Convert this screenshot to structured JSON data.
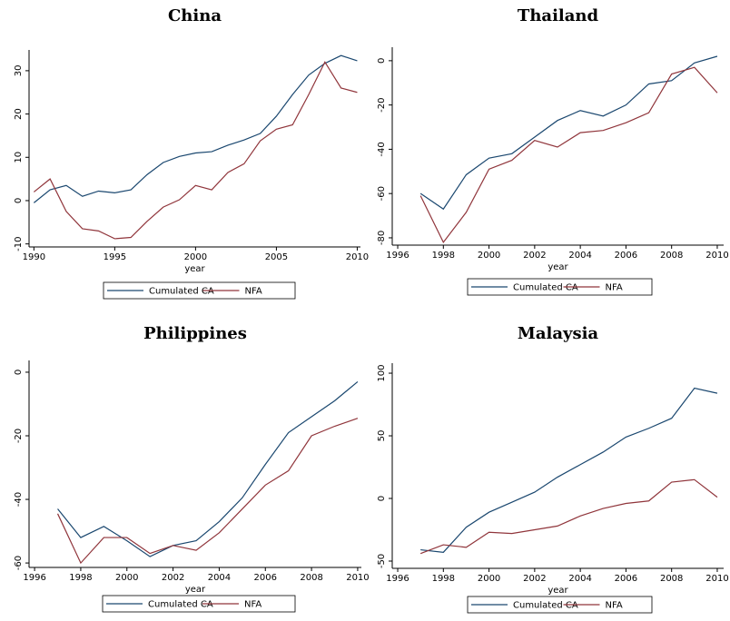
{
  "chart_data": [
    {
      "type": "line",
      "title": "China",
      "xlabel": "year",
      "x": [
        1990,
        1991,
        1992,
        1993,
        1994,
        1995,
        1996,
        1997,
        1998,
        1999,
        2000,
        2001,
        2002,
        2003,
        2004,
        2005,
        2006,
        2007,
        2008,
        2009,
        2010
      ],
      "series": [
        {
          "name": "Cumulated CA",
          "color": "#1a476f",
          "values": [
            -0.5,
            2.5,
            3.5,
            1,
            2.2,
            1.8,
            2.5,
            6,
            8.8,
            10.2,
            11,
            11.3,
            12.8,
            14,
            15.5,
            19.5,
            24.5,
            29,
            31.7,
            33.5,
            32.3
          ]
        },
        {
          "name": "NFA",
          "color": "#90353b",
          "values": [
            2,
            5,
            -2.5,
            -6.5,
            -7,
            -8.8,
            -8.5,
            -4.8,
            -1.5,
            0.2,
            3.5,
            2.5,
            6.5,
            8.5,
            13.8,
            16.5,
            17.5,
            24.5,
            32,
            26,
            25
          ]
        }
      ],
      "xlim": [
        1989.7,
        2010.2
      ],
      "ylim": [
        -10.7,
        34.8
      ],
      "xticks": [
        1990,
        1995,
        2000,
        2005,
        2010
      ],
      "yticks": [
        -10,
        0,
        10,
        20,
        30
      ]
    },
    {
      "type": "line",
      "title": "Thailand",
      "xlabel": "year",
      "x": [
        1997,
        1998,
        1999,
        2000,
        2001,
        2002,
        2003,
        2004,
        2005,
        2006,
        2007,
        2008,
        2009,
        2010
      ],
      "series": [
        {
          "name": "Cumulated CA",
          "color": "#1a476f",
          "values": [
            -60,
            -67,
            -51.5,
            -44,
            -42,
            -34.5,
            -27,
            -22.5,
            -25,
            -20,
            -10.5,
            -9,
            -1,
            2
          ]
        },
        {
          "name": "NFA",
          "color": "#90353b",
          "values": [
            -61,
            -82,
            -68.5,
            -49,
            -45,
            -36,
            -39,
            -32.5,
            -31.5,
            -28,
            -23.5,
            -6,
            -3,
            -14.5
          ]
        }
      ],
      "xlim": [
        1995.76,
        2010.28
      ],
      "ylim": [
        -83.3,
        6.1
      ],
      "xticks": [
        1996,
        1998,
        2000,
        2002,
        2004,
        2006,
        2008,
        2010
      ],
      "yticks": [
        -80,
        -60,
        -40,
        -20,
        0
      ]
    },
    {
      "type": "line",
      "title": "Philippines",
      "xlabel": "year",
      "x": [
        1997,
        1998,
        1999,
        2000,
        2001,
        2002,
        2003,
        2004,
        2005,
        2006,
        2007,
        2008,
        2009,
        2010
      ],
      "series": [
        {
          "name": "Cumulated CA",
          "color": "#1a476f",
          "values": [
            -43,
            -52,
            -48.5,
            -53,
            -58,
            -54.5,
            -53,
            -47,
            -39.5,
            -29,
            -19,
            -14,
            -9,
            -3
          ]
        },
        {
          "name": "NFA",
          "color": "#90353b",
          "values": [
            -44.5,
            -60,
            -52,
            -52,
            -57,
            -54.5,
            -56,
            -50.5,
            -43,
            -35.5,
            -31,
            -20,
            -17,
            -14.5
          ]
        }
      ],
      "xlim": [
        1995.76,
        2010.16
      ],
      "ylim": [
        -61.4,
        3.7
      ],
      "xticks": [
        1996,
        1998,
        2000,
        2002,
        2004,
        2006,
        2008,
        2010
      ],
      "yticks": [
        -60,
        -40,
        -20,
        0
      ]
    },
    {
      "type": "line",
      "title": "Malaysia",
      "xlabel": "year",
      "x": [
        1997,
        1998,
        1999,
        2000,
        2001,
        2002,
        2003,
        2004,
        2005,
        2006,
        2007,
        2008,
        2009,
        2010
      ],
      "series": [
        {
          "name": "Cumulated CA",
          "color": "#1a476f",
          "values": [
            -41,
            -43,
            -23,
            -11,
            -3,
            5,
            17,
            27,
            37,
            49,
            56,
            64,
            88,
            84
          ]
        },
        {
          "name": "NFA",
          "color": "#90353b",
          "values": [
            -44,
            -37,
            -39,
            -27,
            -28,
            -25,
            -22,
            -14,
            -8,
            -4,
            -2,
            13,
            15,
            1
          ]
        }
      ],
      "xlim": [
        1995.76,
        2010.28
      ],
      "ylim": [
        -55.8,
        108
      ],
      "xticks": [
        1996,
        1998,
        2000,
        2002,
        2004,
        2006,
        2008,
        2010
      ],
      "yticks": [
        -50,
        0,
        50,
        100
      ]
    }
  ]
}
